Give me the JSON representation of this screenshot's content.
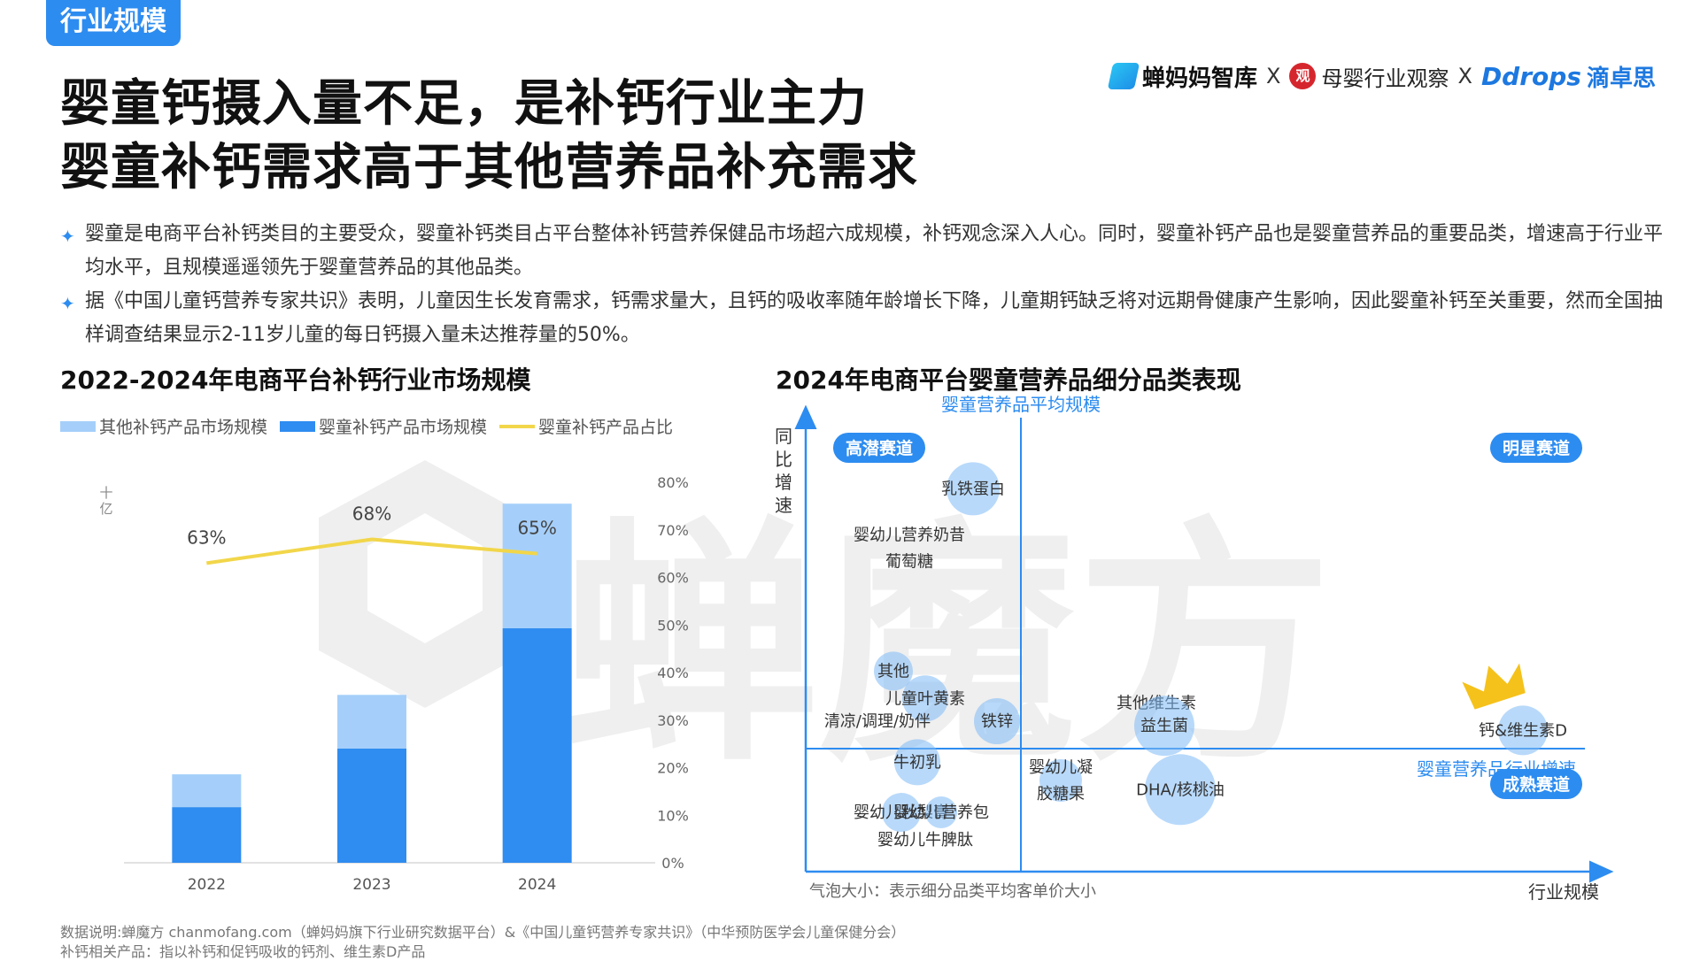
{
  "header": {
    "section_tag": "行业规模",
    "title_line1": "婴童钙摄入量不足，是补钙行业主力",
    "title_line2": "婴童补钙需求高于其他营养品补充需求"
  },
  "logos": {
    "chanmama": "蝉妈妈智库",
    "sep": "X",
    "muying": "母婴行业观察",
    "ddrops_en": "Ddrops",
    "ddrops_cn": "滴卓思"
  },
  "watermark": "蝉魔方",
  "bullets": [
    "婴童是电商平台补钙类目的主要受众，婴童补钙类目占平台整体补钙营养保健品市场超六成规模，补钙观念深入人心。同时，婴童补钙产品也是婴童营养品的重要品类，增速高于行业平均水平，且规模遥遥领先于婴童营养品的其他品类。",
    "据《中国儿童钙营养专家共识》表明，儿童因生长发育需求，钙需求量大，且钙的吸收率随年龄增长下降，儿童期钙缺乏将对远期骨健康产生影响，因此婴童补钙至关重要，然而全国抽样调查结果显示2-11岁儿童的每日钙摄入量未达推荐量的50%。"
  ],
  "colors": {
    "other_bar": "#a5cffa",
    "infant_bar": "#2f8cf0",
    "share_line": "#f2d64a",
    "axis_blue": "#2d8cf0",
    "bubble": "#7eb9f5"
  },
  "chart_data": [
    {
      "type": "bar",
      "title": "2022-2024年电商平台补钙行业市场规模",
      "stacked": true,
      "y_unit_label": "十亿",
      "categories": [
        "2022",
        "2023",
        "2024"
      ],
      "series": [
        {
          "name": "婴童补钙产品市场规模",
          "color_key": "infant_bar",
          "values": [
            1.17,
            2.4,
            4.93
          ]
        },
        {
          "name": "其他补钙产品市场规模",
          "color_key": "other_bar",
          "values": [
            0.69,
            1.13,
            2.62
          ]
        },
        {
          "name": "婴童补钙产品占比",
          "type": "line",
          "axis": "right",
          "color_key": "share_line",
          "values": [
            63,
            68,
            65
          ],
          "labels": [
            "63%",
            "68%",
            "65%"
          ]
        }
      ],
      "ylim": [
        0,
        8
      ],
      "y2lim": [
        0,
        80
      ],
      "y2_ticks": [
        "0%",
        "10%",
        "20%",
        "30%",
        "40%",
        "50%",
        "60%",
        "70%",
        "80%"
      ],
      "legend_position": "top"
    },
    {
      "type": "scatter",
      "title": "2024年电商平台婴童营养品细分品类表现",
      "xlabel": "行业规模",
      "ylabel": "同比增速",
      "x_ref_label": "婴童营养品平均规模",
      "y_ref_label": "婴童营养品行业增速",
      "xlim": [
        0,
        100
      ],
      "ylim": [
        0,
        100
      ],
      "x_ref": 27,
      "y_ref": 27,
      "quadrants": [
        "高潜赛道",
        "明星赛道",
        "成熟赛道"
      ],
      "note": "气泡大小：表示细分品类平均客单价大小",
      "points": [
        {
          "label": "乳铁蛋白",
          "x": 21,
          "y": 84,
          "size": 30
        },
        {
          "label": "婴幼儿营养奶昔葡萄糖",
          "x": 13,
          "y": 71,
          "size": 0
        },
        {
          "label": "其他",
          "x": 11,
          "y": 44,
          "size": 22
        },
        {
          "label": "儿童叶黄素",
          "x": 15,
          "y": 38,
          "size": 26
        },
        {
          "label": "清凉/调理/奶伴",
          "x": 9,
          "y": 33,
          "size": 0
        },
        {
          "label": "铁锌",
          "x": 24,
          "y": 33,
          "size": 26
        },
        {
          "label": "牛初乳",
          "x": 14,
          "y": 24,
          "size": 26
        },
        {
          "label": "其他维生素",
          "x": 44,
          "y": 37,
          "size": 0
        },
        {
          "label": "益生菌",
          "x": 45,
          "y": 32,
          "size": 34
        },
        {
          "label": "钙&维生素D",
          "x": 90,
          "y": 31,
          "size": 28
        },
        {
          "label": "婴幼儿凝胶糖果",
          "x": 32,
          "y": 20,
          "size": 24
        },
        {
          "label": "DHA/核桃油",
          "x": 47,
          "y": 18,
          "size": 40
        },
        {
          "label": "婴幼儿秋梨膏",
          "x": 12,
          "y": 13,
          "size": 22
        },
        {
          "label": "婴幼儿营养包",
          "x": 17,
          "y": 13,
          "size": 18
        },
        {
          "label": "婴幼儿牛脾肽",
          "x": 15,
          "y": 7,
          "size": 0
        }
      ]
    }
  ],
  "footnotes": [
    "数据说明:蝉魔方 chanmofang.com（蝉妈妈旗下行业研究数据平台）&《中国儿童钙营养专家共识》（中华预防医学会儿童保健分会）",
    "补钙相关产品：指以补钙和促钙吸收的钙剂、维生素D产品"
  ]
}
